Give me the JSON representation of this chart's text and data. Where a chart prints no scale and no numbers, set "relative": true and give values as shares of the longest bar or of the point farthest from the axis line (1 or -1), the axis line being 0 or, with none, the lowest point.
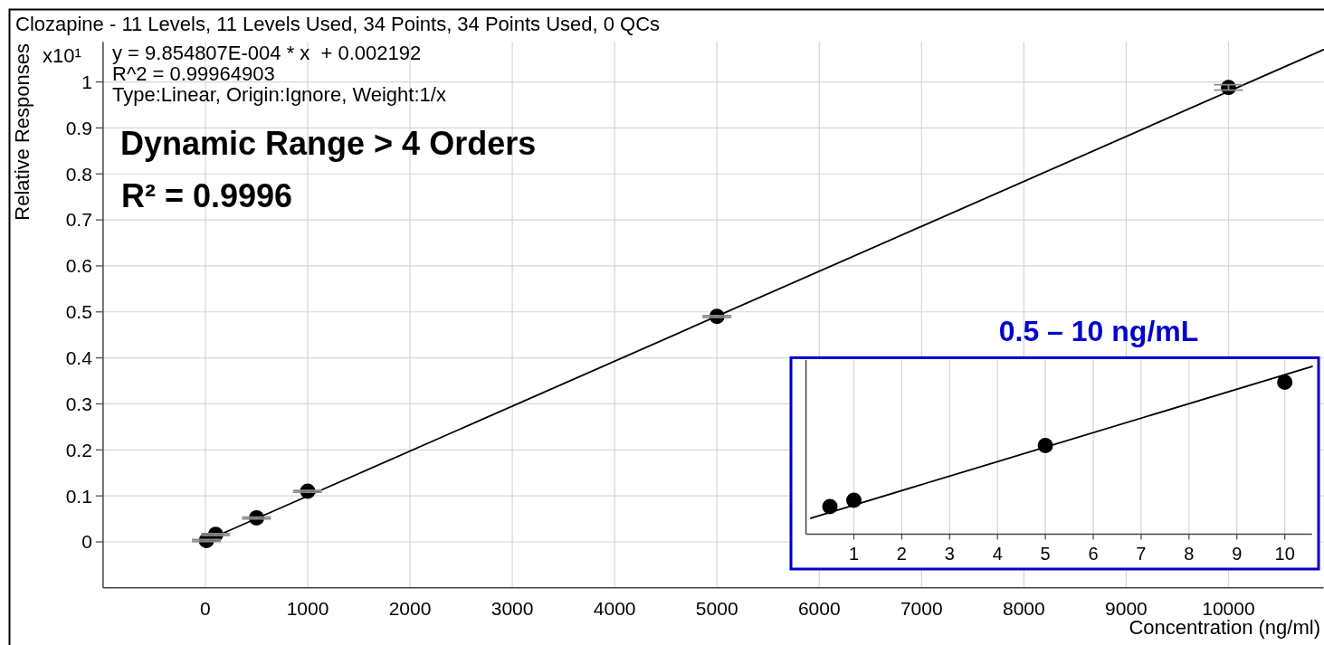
{
  "chart_data": [
    {
      "type": "scatter",
      "title": "Clozapine - 11 Levels, 11 Levels Used, 34 Points, 34 Points Used, 0 QCs",
      "xlabel": "Concentration (ng/ml)",
      "ylabel": "Relative Responses",
      "annotations": [
        "x10¹",
        "y = 9.854807E-004 * x  + 0.002192",
        "R^2 = 0.99964903",
        "Type:Linear, Origin:Ignore, Weight:1/x",
        "Dynamic Range > 4 Orders",
        "R² = 0.9996"
      ],
      "xlim": [
        -1000,
        10930
      ],
      "xticks": [
        0,
        1000,
        2000,
        3000,
        4000,
        5000,
        6000,
        7000,
        8000,
        9000,
        10000
      ],
      "ylim": [
        -0.1,
        1.087
      ],
      "yticks": [
        0,
        0.1,
        0.2,
        0.3,
        0.4,
        0.5,
        0.6,
        0.7,
        0.8,
        0.9,
        1
      ],
      "grid": true,
      "series": [
        {
          "marker": "circle",
          "color": "#000000",
          "x": [
            10,
            100,
            500,
            1000,
            5000,
            10000
          ],
          "values": [
            0.003,
            0.016,
            0.052,
            0.11,
            0.49,
            0.988
          ],
          "errors": [
            0.002,
            0.002,
            0.002,
            0.002,
            0.002,
            0.006
          ]
        },
        {
          "type": "line",
          "color": "#000000",
          "x": [
            0.5,
            10930
          ],
          "values": [
            0.002,
            1.07
          ]
        }
      ]
    },
    {
      "type": "scatter",
      "title": "0.5 – 10 ng/mL",
      "relative": true,
      "xlim": [
        0,
        10.57
      ],
      "xticks": [
        1,
        2,
        3,
        4,
        5,
        6,
        7,
        8,
        9,
        10
      ],
      "tick_labels": "x",
      "grid": "x",
      "series": [
        {
          "marker": "circle",
          "color": "#000000",
          "x": [
            0.5,
            1,
            5,
            10
          ],
          "values": [
            0.164,
            0.202,
            0.528,
            0.906
          ]
        },
        {
          "type": "line",
          "color": "#000000",
          "x": [
            0.1,
            10.57
          ],
          "values": [
            0.095,
            1
          ]
        }
      ]
    }
  ]
}
